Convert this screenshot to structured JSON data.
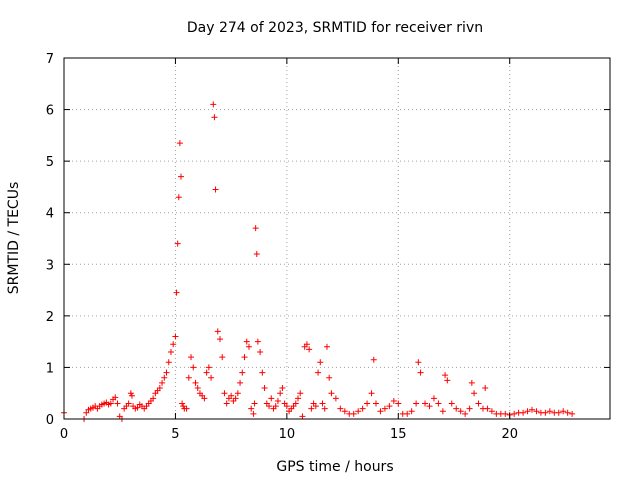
{
  "chart_data": {
    "type": "scatter",
    "title": "Day 274 of 2023, SRMTID for receiver rivn",
    "xlabel": "GPS time / hours",
    "ylabel": "SRMTID / TECUs",
    "xlim": [
      0,
      24.5
    ],
    "ylim": [
      0,
      7
    ],
    "xticks": [
      0,
      5,
      10,
      15,
      20
    ],
    "yticks": [
      0,
      1,
      2,
      3,
      4,
      5,
      6,
      7
    ],
    "grid": true,
    "marker": "plus",
    "series": [
      {
        "color": "#ff0000",
        "x": [
          0.0,
          0.9,
          1.0,
          1.1,
          1.2,
          1.3,
          1.4,
          1.5,
          1.6,
          1.7,
          1.8,
          1.9,
          2.0,
          2.1,
          2.2,
          2.3,
          2.4,
          2.5,
          2.6,
          2.7,
          2.8,
          2.9,
          3.0,
          3.05,
          3.1,
          3.2,
          3.3,
          3.4,
          3.5,
          3.6,
          3.7,
          3.8,
          3.9,
          4.0,
          4.1,
          4.2,
          4.3,
          4.4,
          4.5,
          4.6,
          4.7,
          4.8,
          4.9,
          5.0,
          5.05,
          5.1,
          5.15,
          5.2,
          5.25,
          5.3,
          5.35,
          5.4,
          5.5,
          5.6,
          5.7,
          5.8,
          5.9,
          6.0,
          6.1,
          6.2,
          6.3,
          6.4,
          6.5,
          6.6,
          6.7,
          6.75,
          6.8,
          6.9,
          7.0,
          7.1,
          7.2,
          7.3,
          7.4,
          7.5,
          7.6,
          7.7,
          7.8,
          7.9,
          8.0,
          8.1,
          8.2,
          8.3,
          8.4,
          8.5,
          8.55,
          8.6,
          8.65,
          8.7,
          8.8,
          8.9,
          9.0,
          9.1,
          9.2,
          9.3,
          9.4,
          9.5,
          9.6,
          9.7,
          9.8,
          9.9,
          10.0,
          10.1,
          10.2,
          10.3,
          10.4,
          10.5,
          10.6,
          10.7,
          10.8,
          10.9,
          11.0,
          11.1,
          11.2,
          11.3,
          11.4,
          11.5,
          11.6,
          11.7,
          11.8,
          11.9,
          12.0,
          12.2,
          12.4,
          12.6,
          12.8,
          13.0,
          13.2,
          13.4,
          13.6,
          13.8,
          13.9,
          14.0,
          14.2,
          14.4,
          14.6,
          14.8,
          15.0,
          15.2,
          15.4,
          15.6,
          15.8,
          15.9,
          16.0,
          16.2,
          16.4,
          16.6,
          16.8,
          17.0,
          17.1,
          17.2,
          17.4,
          17.6,
          17.8,
          18.0,
          18.2,
          18.3,
          18.4,
          18.6,
          18.8,
          18.9,
          19.0,
          19.2,
          19.4,
          19.6,
          19.8,
          20.0,
          20.2,
          20.4,
          20.6,
          20.8,
          21.0,
          21.2,
          21.4,
          21.6,
          21.8,
          22.0,
          22.2,
          22.4,
          22.6,
          22.8
        ],
        "y": [
          0.12,
          0.0,
          0.12,
          0.18,
          0.2,
          0.22,
          0.25,
          0.2,
          0.25,
          0.28,
          0.3,
          0.32,
          0.28,
          0.3,
          0.38,
          0.42,
          0.3,
          0.05,
          0.0,
          0.2,
          0.25,
          0.3,
          0.5,
          0.45,
          0.25,
          0.2,
          0.22,
          0.28,
          0.25,
          0.2,
          0.25,
          0.3,
          0.35,
          0.4,
          0.5,
          0.55,
          0.6,
          0.7,
          0.8,
          0.9,
          1.1,
          1.3,
          1.45,
          1.6,
          2.45,
          3.4,
          4.3,
          5.35,
          4.7,
          0.3,
          0.25,
          0.2,
          0.2,
          0.8,
          1.2,
          1.0,
          0.7,
          0.6,
          0.5,
          0.45,
          0.4,
          0.9,
          1.0,
          0.8,
          6.1,
          5.85,
          4.45,
          1.7,
          1.55,
          1.2,
          0.5,
          0.3,
          0.4,
          0.45,
          0.35,
          0.4,
          0.5,
          0.7,
          0.9,
          1.2,
          1.5,
          1.4,
          0.2,
          0.1,
          0.3,
          3.7,
          3.2,
          1.5,
          1.3,
          0.9,
          0.6,
          0.3,
          0.25,
          0.4,
          0.2,
          0.25,
          0.35,
          0.5,
          0.6,
          0.3,
          0.25,
          0.15,
          0.2,
          0.25,
          0.3,
          0.4,
          0.5,
          0.05,
          1.4,
          1.45,
          1.35,
          0.2,
          0.3,
          0.25,
          0.9,
          1.1,
          0.3,
          0.2,
          1.4,
          0.8,
          0.5,
          0.4,
          0.2,
          0.15,
          0.1,
          0.1,
          0.15,
          0.2,
          0.3,
          0.5,
          1.15,
          0.3,
          0.15,
          0.2,
          0.25,
          0.35,
          0.3,
          0.1,
          0.1,
          0.15,
          0.3,
          1.1,
          0.9,
          0.3,
          0.25,
          0.4,
          0.3,
          0.15,
          0.85,
          0.75,
          0.3,
          0.2,
          0.15,
          0.1,
          0.2,
          0.7,
          0.5,
          0.3,
          0.2,
          0.6,
          0.2,
          0.15,
          0.1,
          0.1,
          0.1,
          0.08,
          0.1,
          0.12,
          0.12,
          0.15,
          0.18,
          0.15,
          0.12,
          0.12,
          0.15,
          0.12,
          0.12,
          0.15,
          0.12,
          0.1
        ]
      }
    ]
  }
}
